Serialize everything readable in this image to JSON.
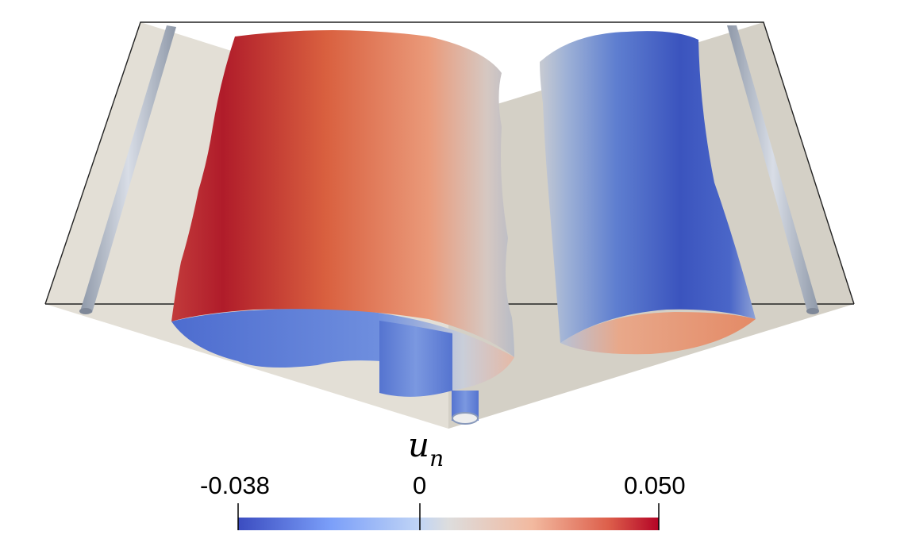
{
  "colorbar": {
    "title_symbol": "u",
    "title_subscript": "n",
    "min_label": "-0.038",
    "mid_label": "0",
    "max_label": "0.050",
    "colors": {
      "low": "#3b4cc0",
      "mid": "#dddddd",
      "high": "#b40426"
    }
  }
}
